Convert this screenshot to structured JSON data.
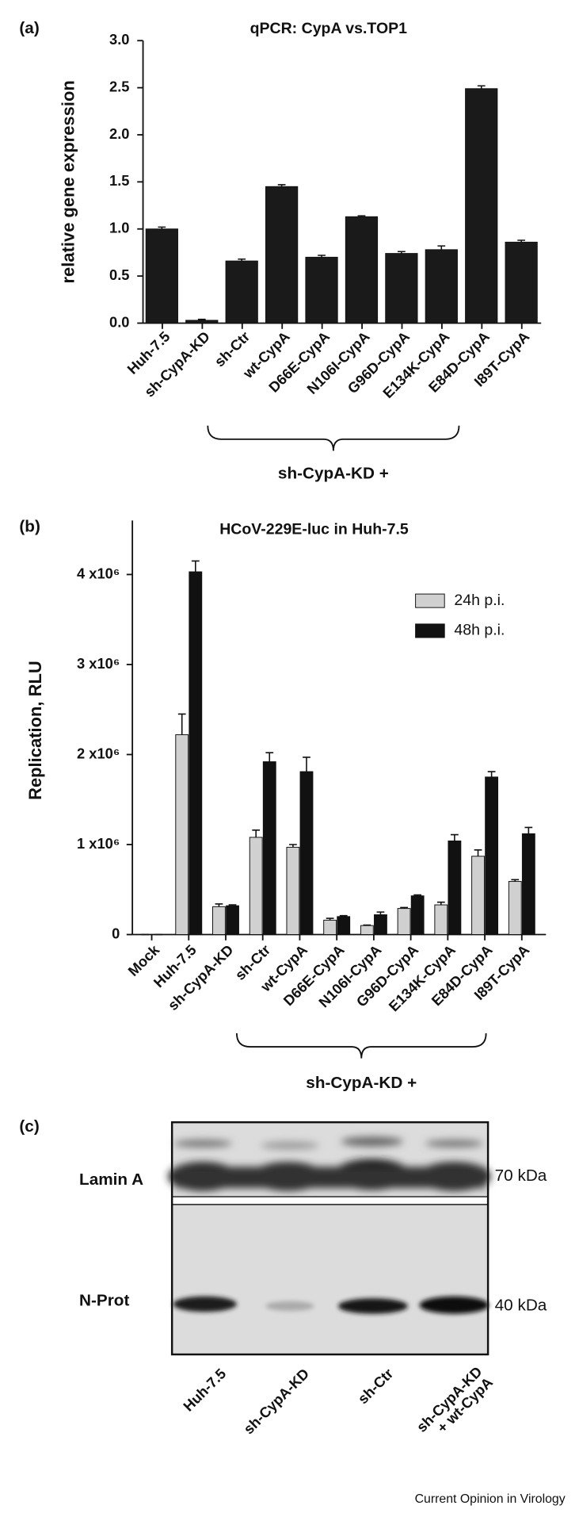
{
  "chart_data": [
    {
      "type": "bar",
      "panel_label": "(a)",
      "title": "qPCR: CypA vs.TOP1",
      "y_label": "relative gene expression",
      "categories": [
        "Huh-7.5",
        "sh-CypA-KD",
        "sh-Ctr",
        "wt-CypA",
        "D66E-CypA",
        "N106I-CypA",
        "G96D-CypA",
        "E134K-CypA",
        "E84D-CypA",
        "I89T-CypA"
      ],
      "values": [
        1.0,
        0.03,
        0.66,
        1.45,
        0.7,
        1.13,
        0.74,
        0.78,
        2.49,
        0.86
      ],
      "errors": [
        0.02,
        0.01,
        0.02,
        0.02,
        0.02,
        0.01,
        0.02,
        0.04,
        0.03,
        0.02
      ],
      "color": "#1a1a1a",
      "ylim": [
        0,
        3
      ],
      "yticks": [
        {
          "value": 0,
          "label": "0.0"
        },
        0.5,
        {
          "value": 1,
          "label": "1.0"
        },
        1.5,
        {
          "value": 2,
          "label": "2.0"
        },
        2.5,
        {
          "value": 3,
          "label": "3.0"
        }
      ],
      "bracket_label": "sh-CypA-KD +"
    },
    {
      "type": "bar",
      "panel_label": "(b)",
      "title": "HCoV-229E-luc in Huh-7.5",
      "y_label": "Replication, RLU",
      "categories": [
        "Mock",
        "Huh-7.5",
        "sh-CypA-KD",
        "sh-Ctr",
        "wt-CypA",
        "D66E-CypA",
        "N106I-CypA",
        "G96D-CypA",
        "E134K-CypA",
        "E84D-CypA",
        "I89T-CypA"
      ],
      "series": [
        {
          "name": "24h p.i.",
          "color": "#d0d0d0",
          "values": [
            0,
            2220000,
            310000,
            1080000,
            970000,
            160000,
            100000,
            290000,
            330000,
            870000,
            590000
          ],
          "errors": [
            0,
            230000,
            30000,
            80000,
            30000,
            20000,
            5000,
            10000,
            30000,
            70000,
            20000
          ]
        },
        {
          "name": "48h p.i.",
          "color": "#111111",
          "values": [
            0,
            4030000,
            320000,
            1920000,
            1810000,
            200000,
            220000,
            430000,
            1040000,
            1750000,
            1120000
          ],
          "errors": [
            0,
            120000,
            10000,
            100000,
            160000,
            10000,
            30000,
            10000,
            70000,
            60000,
            70000
          ]
        }
      ],
      "ylim": [
        0,
        4600000
      ],
      "yticks": [
        0,
        {
          "value": 1000000,
          "label": "1 x10⁶"
        },
        {
          "value": 2000000,
          "label": "2 x10⁶"
        },
        {
          "value": 3000000,
          "label": "3 x10⁶"
        },
        {
          "value": 4000000,
          "label": "4 x10⁶"
        }
      ],
      "legend": "upper right",
      "bracket_label": "sh-CypA-KD +"
    }
  ],
  "blot": {
    "panel_label": "(c)",
    "rows": [
      "Lamin A",
      "N-Prot"
    ],
    "sizes": [
      "70 kDa",
      "40 kDa"
    ],
    "lanes": [
      "Huh-7.5",
      "sh-CypA-KD",
      "sh-Ctr",
      [
        "sh-CypA-KD",
        "+ wt-CypA"
      ]
    ]
  },
  "credit": "Current Opinion in Virology"
}
